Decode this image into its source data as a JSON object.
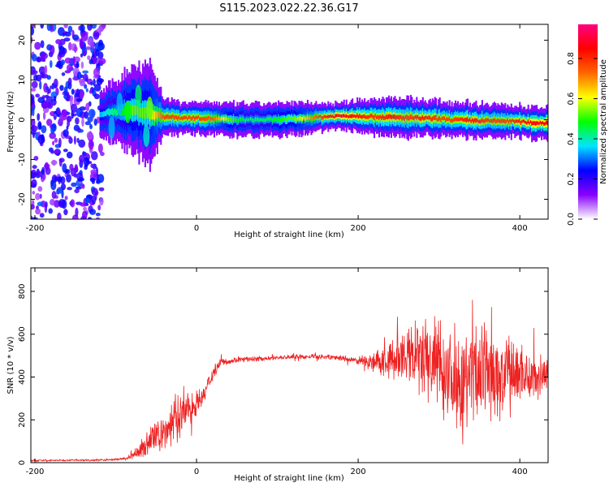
{
  "title": "S115.2023.022.22.36.G17",
  "colors": {
    "snr_line": "#ee2222",
    "axis": "#000000",
    "colormap": [
      "#ffffff",
      "#8800ff",
      "#0000ff",
      "#00e5ff",
      "#00ff00",
      "#ffff00",
      "#ff6600",
      "#ff0000",
      "#ff0080"
    ]
  },
  "chart_data": [
    {
      "type": "heatmap",
      "xlabel": "Height of straight line (km)",
      "ylabel": "Frequency (Hz)",
      "xlim": [
        -205,
        435
      ],
      "ylim": [
        -25,
        24
      ],
      "xticks": [
        -200,
        0,
        200,
        400
      ],
      "yticks": [
        -20,
        -10,
        0,
        10,
        20
      ],
      "grid": false,
      "colorbar": {
        "label": "Normalized spectral amplitude",
        "range": [
          0,
          0.97
        ],
        "ticks": [
          0.0,
          0.2,
          0.4,
          0.6,
          0.8
        ],
        "placement": "right"
      },
      "ridge": {
        "x": [
          -120,
          -100,
          -80,
          -60,
          -40,
          -20,
          0,
          20,
          40,
          60,
          80,
          100,
          120,
          140,
          160,
          180,
          200,
          220,
          240,
          260,
          280,
          300,
          320,
          340,
          360,
          380,
          400,
          420,
          435
        ],
        "freq": [
          1.5,
          2.0,
          2.5,
          1.5,
          0.8,
          0.5,
          0.5,
          0.3,
          0.0,
          0.0,
          0.0,
          0.0,
          0.2,
          0.5,
          0.8,
          1.0,
          1.0,
          0.8,
          0.6,
          0.5,
          0.4,
          0.2,
          0.0,
          -0.2,
          -0.3,
          -0.3,
          -0.5,
          -0.8,
          -0.8
        ],
        "amp": [
          0.35,
          0.45,
          0.55,
          0.55,
          0.8,
          0.8,
          0.8,
          0.75,
          0.55,
          0.45,
          0.45,
          0.5,
          0.55,
          0.7,
          0.85,
          0.9,
          0.85,
          0.8,
          0.85,
          0.8,
          0.85,
          0.8,
          0.8,
          0.85,
          0.8,
          0.8,
          0.85,
          0.9,
          0.9
        ],
        "halfwidth": [
          2.5,
          3.5,
          5.0,
          6.0,
          2.0,
          1.8,
          1.8,
          1.8,
          1.8,
          1.8,
          1.8,
          1.8,
          1.8,
          1.8,
          1.5,
          1.5,
          1.8,
          2.0,
          2.2,
          2.2,
          2.0,
          2.0,
          2.0,
          2.0,
          2.0,
          1.8,
          1.8,
          1.8,
          1.8
        ]
      },
      "noise_region": {
        "x": [
          -205,
          -115
        ],
        "amp": 0.2
      }
    },
    {
      "type": "line",
      "xlabel": "Height of straight line (km)",
      "ylabel": "SNR (10 * v/v)",
      "xlim": [
        -205,
        435
      ],
      "ylim": [
        0,
        910
      ],
      "xticks": [
        -200,
        0,
        200,
        400
      ],
      "yticks": [
        0,
        200,
        400,
        600,
        800
      ],
      "grid": false,
      "series": [
        {
          "x": [
            -205,
            -180,
            -150,
            -120,
            -100,
            -85,
            -70,
            -55,
            -40,
            -25,
            -10,
            0,
            10,
            20,
            30,
            50,
            75,
            100,
            125,
            150,
            175,
            200,
            225,
            250,
            275,
            300,
            325,
            350,
            375,
            400,
            420,
            435
          ],
          "values": [
            10,
            10,
            12,
            12,
            15,
            20,
            60,
            110,
            140,
            210,
            250,
            280,
            320,
            420,
            470,
            480,
            485,
            490,
            495,
            495,
            490,
            475,
            470,
            480,
            490,
            450,
            400,
            430,
            400,
            420,
            400,
            420
          ],
          "spread": [
            4,
            4,
            4,
            4,
            4,
            8,
            40,
            70,
            90,
            120,
            90,
            60,
            50,
            40,
            20,
            15,
            12,
            12,
            12,
            12,
            14,
            20,
            60,
            120,
            200,
            250,
            250,
            260,
            220,
            170,
            120,
            80
          ]
        }
      ]
    }
  ]
}
